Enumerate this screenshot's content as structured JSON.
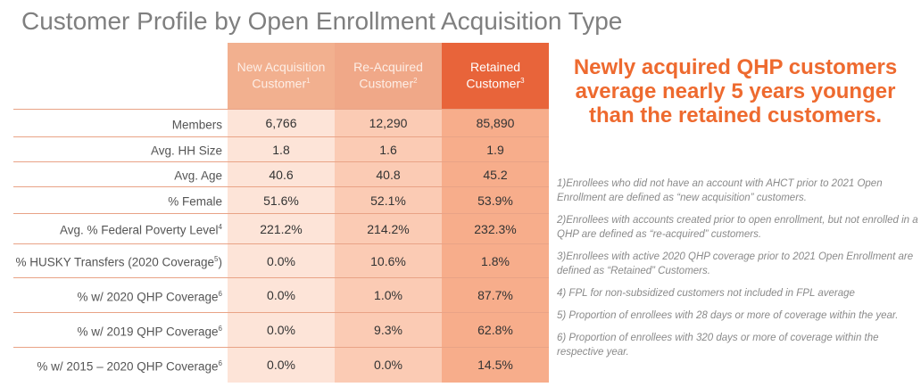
{
  "title": "Customer Profile by Open Enrollment Acquisition Type",
  "columns": [
    {
      "label": "New Acquisition Customer",
      "sup": "1"
    },
    {
      "label": "Re-Acquired Customer",
      "sup": "2"
    },
    {
      "label": "Retained Customer",
      "sup": "3"
    }
  ],
  "rows": [
    {
      "label": "Members",
      "sup": "",
      "values": [
        "6,766",
        "12,290",
        "85,890"
      ]
    },
    {
      "label": "Avg. HH Size",
      "sup": "",
      "values": [
        "1.8",
        "1.6",
        "1.9"
      ]
    },
    {
      "label": "Avg. Age",
      "sup": "",
      "values": [
        "40.6",
        "40.8",
        "45.2"
      ]
    },
    {
      "label": "% Female",
      "sup": "",
      "values": [
        "51.6%",
        "52.1%",
        "53.9%"
      ]
    },
    {
      "label": "Avg. % Federal Poverty Level",
      "sup": "4",
      "values": [
        "221.2%",
        "214.2%",
        "232.3%"
      ]
    },
    {
      "label": "% HUSKY Transfers (2020 Coverage",
      "sup": "5",
      "suffix": ")",
      "values": [
        "0.0%",
        "10.6%",
        "1.8%"
      ]
    },
    {
      "label": "% w/ 2020 QHP Coverage",
      "sup": "6",
      "values": [
        "0.0%",
        "1.0%",
        "87.7%"
      ]
    },
    {
      "label": "% w/ 2019 QHP Coverage",
      "sup": "6",
      "values": [
        "0.0%",
        "9.3%",
        "62.8%"
      ]
    },
    {
      "label": "% w/ 2015 – 2020 QHP Coverage",
      "sup": "6",
      "values": [
        "0.0%",
        "0.0%",
        "14.5%"
      ]
    }
  ],
  "headline": "Newly acquired QHP customers average nearly 5 years younger than the retained customers.",
  "notes": [
    "1)Enrollees who did not have an account with AHCT prior to 2021 Open Enrollment are defined as “new acquisition” customers.",
    "2)Enrollees with accounts created prior to open enrollment, but not enrolled in a QHP are defined as “re-acquired” customers.",
    "3)Enrollees with active 2020 QHP coverage prior to 2021 Open Enrollment are defined as “Retained” Customers.",
    "4) FPL for non-subsidized customers not included in FPL average",
    "5) Proportion of enrollees with 28 days or more of coverage within the year.",
    "6) Proportion of enrollees with 320 days or more of coverage within the respective year."
  ]
}
